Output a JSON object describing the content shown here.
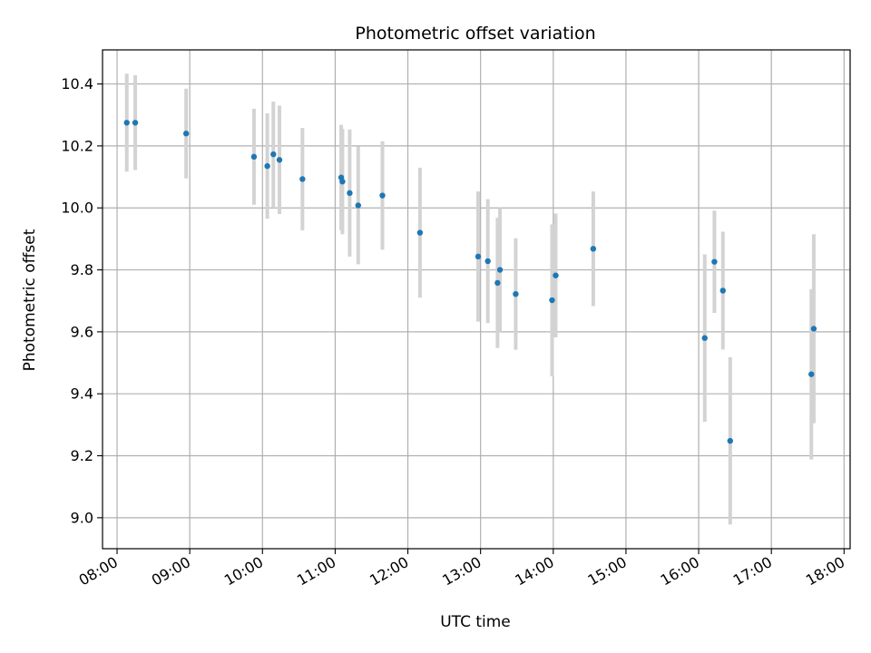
{
  "chart_data": {
    "type": "scatter",
    "title": "Photometric offset variation",
    "xlabel": "UTC time",
    "ylabel": "Photometric offset",
    "xlim": [
      "07:48",
      "18:05"
    ],
    "ylim": [
      8.9,
      10.51
    ],
    "x_ticks": [
      "08:00",
      "09:00",
      "10:00",
      "11:00",
      "12:00",
      "13:00",
      "14:00",
      "15:00",
      "16:00",
      "17:00",
      "18:00"
    ],
    "y_ticks": [
      "9.0",
      "9.2",
      "9.4",
      "9.6",
      "9.8",
      "10.0",
      "10.2",
      "10.4"
    ],
    "grid": true,
    "marker_color": "#1f77b4",
    "errorbar_color": "#d3d3d3",
    "points": [
      {
        "x": "08:08",
        "y": 10.275,
        "err": 0.158
      },
      {
        "x": "08:15",
        "y": 10.275,
        "err": 0.153
      },
      {
        "x": "08:57",
        "y": 10.24,
        "err": 0.145
      },
      {
        "x": "09:53",
        "y": 10.165,
        "err": 0.155
      },
      {
        "x": "10:04",
        "y": 10.135,
        "err": 0.17
      },
      {
        "x": "10:09",
        "y": 10.173,
        "err": 0.17
      },
      {
        "x": "10:14",
        "y": 10.155,
        "err": 0.175
      },
      {
        "x": "10:33",
        "y": 10.093,
        "err": 0.165
      },
      {
        "x": "11:05",
        "y": 10.098,
        "err": 0.17
      },
      {
        "x": "11:06",
        "y": 10.085,
        "err": 0.17
      },
      {
        "x": "11:12",
        "y": 10.048,
        "err": 0.205
      },
      {
        "x": "11:19",
        "y": 10.008,
        "err": 0.19
      },
      {
        "x": "11:39",
        "y": 10.04,
        "err": 0.175
      },
      {
        "x": "12:10",
        "y": 9.92,
        "err": 0.21
      },
      {
        "x": "12:58",
        "y": 9.843,
        "err": 0.21
      },
      {
        "x": "13:06",
        "y": 9.828,
        "err": 0.2
      },
      {
        "x": "13:14",
        "y": 9.758,
        "err": 0.21
      },
      {
        "x": "13:16",
        "y": 9.8,
        "err": 0.2
      },
      {
        "x": "13:29",
        "y": 9.722,
        "err": 0.18
      },
      {
        "x": "13:59",
        "y": 9.702,
        "err": 0.245
      },
      {
        "x": "14:02",
        "y": 9.782,
        "err": 0.2
      },
      {
        "x": "14:33",
        "y": 9.868,
        "err": 0.185
      },
      {
        "x": "16:05",
        "y": 9.58,
        "err": 0.27
      },
      {
        "x": "16:13",
        "y": 9.826,
        "err": 0.165
      },
      {
        "x": "16:20",
        "y": 9.733,
        "err": 0.19
      },
      {
        "x": "16:26",
        "y": 9.248,
        "err": 0.27
      },
      {
        "x": "17:33",
        "y": 9.463,
        "err": 0.275
      },
      {
        "x": "17:35",
        "y": 9.61,
        "err": 0.305
      }
    ]
  }
}
